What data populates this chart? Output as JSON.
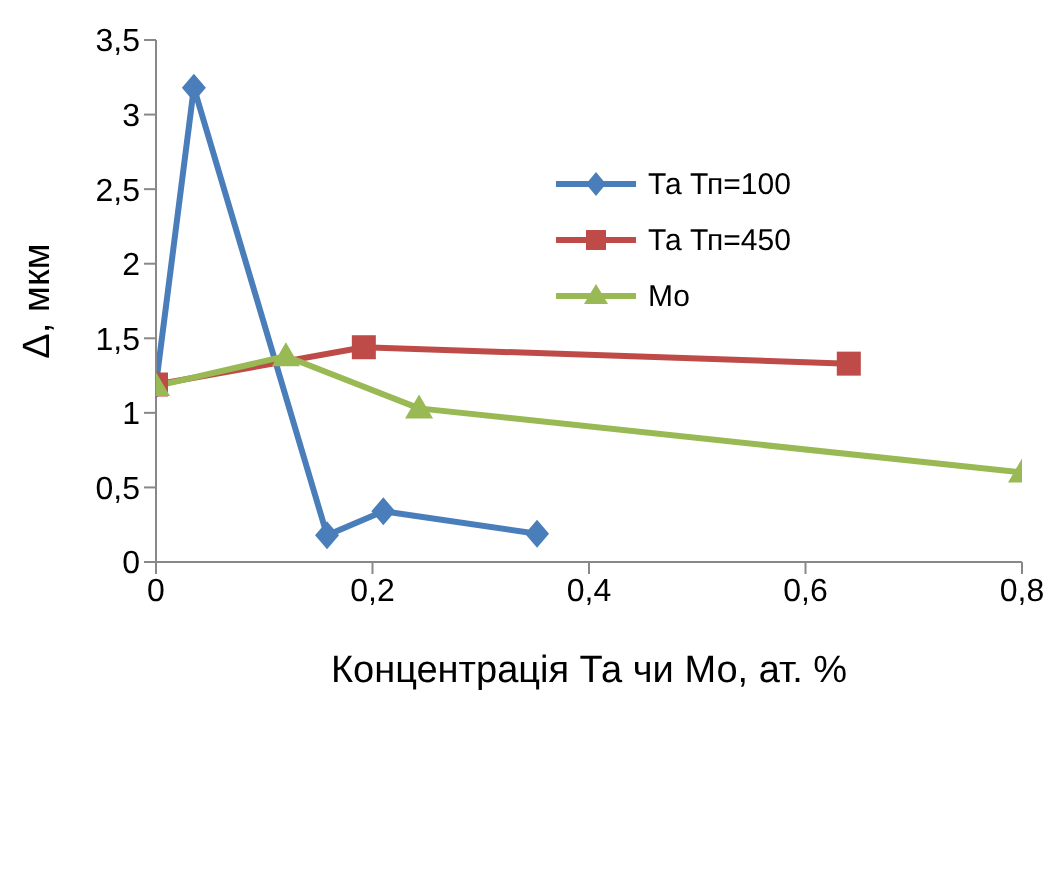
{
  "chart_data": {
    "type": "line",
    "xlabel": "Концентрація Та чи Мо, ат. %",
    "ylabel": "Δ, мкм",
    "xlim": [
      0,
      0.8
    ],
    "xticks": [
      {
        "value": 0,
        "label": "0"
      },
      {
        "value": 0.2,
        "label": "0,2"
      },
      {
        "value": 0.4,
        "label": "0,4"
      },
      {
        "value": 0.6,
        "label": "0,6"
      },
      {
        "value": 0.8,
        "label": "0,8"
      }
    ],
    "ylim": [
      0,
      3.5
    ],
    "yticks": [
      {
        "value": 0,
        "label": "0"
      },
      {
        "value": 0.5,
        "label": "0,5"
      },
      {
        "value": 1,
        "label": "1"
      },
      {
        "value": 1.5,
        "label": "1,5"
      },
      {
        "value": 2,
        "label": "2"
      },
      {
        "value": 2.5,
        "label": "2,5"
      },
      {
        "value": 3,
        "label": "3"
      },
      {
        "value": 3.5,
        "label": "3,5"
      }
    ],
    "grid": false,
    "legend": "top right",
    "line_style": "solid",
    "series": [
      {
        "name": "Та Тп=100",
        "color": "#4a7ebb",
        "marker": "diamond",
        "x": [
          0,
          0.035,
          0.158,
          0.21,
          0.352
        ],
        "values": [
          1.19,
          3.18,
          0.18,
          0.34,
          0.19
        ]
      },
      {
        "name": "Та Тп=450",
        "color": "#be4b48",
        "marker": "square",
        "x": [
          0,
          0.192,
          0.64
        ],
        "values": [
          1.19,
          1.44,
          1.33
        ]
      },
      {
        "name": "Мо",
        "color": "#98b954",
        "marker": "triangle",
        "x": [
          0,
          0.12,
          0.243,
          0.8
        ],
        "values": [
          1.18,
          1.38,
          1.03,
          0.6
        ]
      }
    ]
  }
}
